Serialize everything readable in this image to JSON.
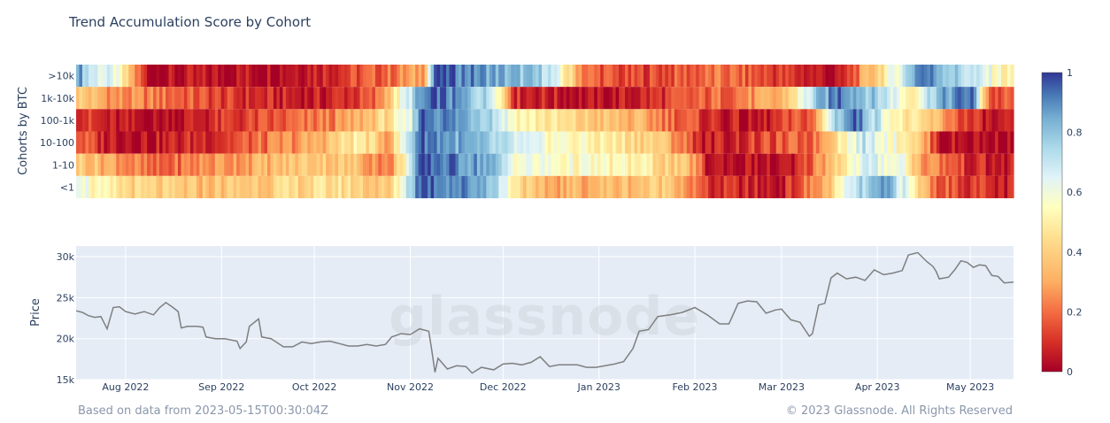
{
  "chart_data": [
    {
      "type": "heatmap",
      "title": "Trend Accumulation Score by Cohort",
      "ylabel": "Cohorts by BTC",
      "rows": [
        ">10k",
        "1k-10k",
        "100-1k",
        "10-100",
        "1-10",
        "<1"
      ],
      "x_range": [
        "2022-07-16",
        "2023-05-15"
      ],
      "colorscale": [
        {
          "stop": 0,
          "color": "#a50026"
        },
        {
          "stop": 0.1,
          "color": "#d73027"
        },
        {
          "stop": 0.2,
          "color": "#f46d43"
        },
        {
          "stop": 0.3,
          "color": "#fdae61"
        },
        {
          "stop": 0.45,
          "color": "#fee090"
        },
        {
          "stop": 0.55,
          "color": "#ffffbf"
        },
        {
          "stop": 0.65,
          "color": "#e0f3f8"
        },
        {
          "stop": 0.75,
          "color": "#abd9e9"
        },
        {
          "stop": 0.85,
          "color": "#74add1"
        },
        {
          "stop": 0.93,
          "color": "#4575b4"
        },
        {
          "stop": 1,
          "color": "#313695"
        }
      ],
      "colorbar_ticks": [
        "0",
        "0.2",
        "0.4",
        "0.6",
        "0.8",
        "1"
      ],
      "colorbar_range": [
        0,
        1
      ],
      "segments": {
        ">10k": [
          [
            "2022-07-16",
            0.9
          ],
          [
            "2022-07-20",
            0.7
          ],
          [
            "2022-07-28",
            0.6
          ],
          [
            "2022-08-08",
            0.02
          ],
          [
            "2022-09-20",
            0.06
          ],
          [
            "2022-10-10",
            0.12
          ],
          [
            "2022-10-25",
            0.2
          ],
          [
            "2022-11-05",
            0.3
          ],
          [
            "2022-11-09",
            0.98
          ],
          [
            "2022-11-28",
            0.85
          ],
          [
            "2022-12-15",
            0.75
          ],
          [
            "2022-12-28",
            0.2
          ],
          [
            "2023-01-10",
            0.12
          ],
          [
            "2023-02-10",
            0.2
          ],
          [
            "2023-03-01",
            0.12
          ],
          [
            "2023-03-20",
            0.02
          ],
          [
            "2023-04-10",
            0.7
          ],
          [
            "2023-04-15",
            0.95
          ],
          [
            "2023-05-08",
            0.6
          ],
          [
            "2023-05-13",
            0.5
          ]
        ],
        "1k-10k": [
          [
            "2022-07-16",
            0.4
          ],
          [
            "2022-07-28",
            0.25
          ],
          [
            "2022-08-15",
            0.2
          ],
          [
            "2022-09-05",
            0.1
          ],
          [
            "2022-10-01",
            0.05
          ],
          [
            "2022-10-20",
            0.15
          ],
          [
            "2022-11-04",
            0.85
          ],
          [
            "2022-11-10",
            0.95
          ],
          [
            "2022-11-28",
            0.7
          ],
          [
            "2022-12-05",
            0.1
          ],
          [
            "2023-01-01",
            0.02
          ],
          [
            "2023-01-20",
            0.1
          ],
          [
            "2023-02-10",
            0.2
          ],
          [
            "2023-03-01",
            0.3
          ],
          [
            "2023-03-12",
            0.75
          ],
          [
            "2023-03-20",
            0.95
          ],
          [
            "2023-04-05",
            0.7
          ],
          [
            "2023-04-12",
            0.5
          ],
          [
            "2023-04-20",
            0.8
          ],
          [
            "2023-05-02",
            0.95
          ],
          [
            "2023-05-08",
            0.15
          ]
        ],
        "100-1k": [
          [
            "2022-07-16",
            0.15
          ],
          [
            "2022-07-25",
            0.05
          ],
          [
            "2022-08-10",
            0.02
          ],
          [
            "2022-09-01",
            0.1
          ],
          [
            "2022-09-20",
            0.15
          ],
          [
            "2022-10-10",
            0.25
          ],
          [
            "2022-10-25",
            0.45
          ],
          [
            "2022-11-01",
            0.6
          ],
          [
            "2022-11-04",
            0.97
          ],
          [
            "2022-11-26",
            0.8
          ],
          [
            "2022-12-05",
            0.55
          ],
          [
            "2022-12-25",
            0.4
          ],
          [
            "2023-01-15",
            0.3
          ],
          [
            "2023-02-05",
            0.1
          ],
          [
            "2023-02-20",
            0.02
          ],
          [
            "2023-03-12",
            0.2
          ],
          [
            "2023-03-18",
            0.75
          ],
          [
            "2023-03-25",
            0.95
          ],
          [
            "2023-04-08",
            0.5
          ],
          [
            "2023-04-20",
            0.35
          ],
          [
            "2023-05-01",
            0.1
          ],
          [
            "2023-05-10",
            0.02
          ]
        ],
        "10-100": [
          [
            "2022-07-16",
            0.2
          ],
          [
            "2022-07-24",
            0.08
          ],
          [
            "2022-08-10",
            0.05
          ],
          [
            "2022-09-01",
            0.12
          ],
          [
            "2022-09-15",
            0.2
          ],
          [
            "2022-10-01",
            0.3
          ],
          [
            "2022-10-15",
            0.5
          ],
          [
            "2022-10-25",
            0.3
          ],
          [
            "2022-11-04",
            0.97
          ],
          [
            "2022-11-26",
            0.75
          ],
          [
            "2022-12-10",
            0.6
          ],
          [
            "2023-01-01",
            0.5
          ],
          [
            "2023-01-20",
            0.4
          ],
          [
            "2023-02-05",
            0.05
          ],
          [
            "2023-03-12",
            0.2
          ],
          [
            "2023-03-20",
            0.5
          ],
          [
            "2023-03-28",
            0.7
          ],
          [
            "2023-04-12",
            0.5
          ],
          [
            "2023-04-22",
            0.05
          ],
          [
            "2023-05-15",
            0.02
          ]
        ],
        "1-10": [
          [
            "2022-07-16",
            0.4
          ],
          [
            "2022-07-28",
            0.3
          ],
          [
            "2022-08-10",
            0.15
          ],
          [
            "2022-08-25",
            0.25
          ],
          [
            "2022-09-10",
            0.3
          ],
          [
            "2022-10-01",
            0.4
          ],
          [
            "2022-10-15",
            0.35
          ],
          [
            "2022-10-25",
            0.2
          ],
          [
            "2022-11-05",
            0.97
          ],
          [
            "2022-11-26",
            0.85
          ],
          [
            "2022-12-05",
            0.6
          ],
          [
            "2022-12-25",
            0.55
          ],
          [
            "2023-01-15",
            0.5
          ],
          [
            "2023-02-01",
            0.3
          ],
          [
            "2023-02-05",
            0.05
          ],
          [
            "2023-03-05",
            0.02
          ],
          [
            "2023-03-20",
            0.45
          ],
          [
            "2023-03-28",
            0.65
          ],
          [
            "2023-04-10",
            0.6
          ],
          [
            "2023-04-15",
            0.3
          ],
          [
            "2023-05-01",
            0.1
          ],
          [
            "2023-05-10",
            0.05
          ]
        ],
        "<1": [
          [
            "2022-07-16",
            0.7
          ],
          [
            "2022-07-22",
            0.5
          ],
          [
            "2022-08-05",
            0.4
          ],
          [
            "2022-08-25",
            0.35
          ],
          [
            "2022-09-15",
            0.4
          ],
          [
            "2022-10-10",
            0.45
          ],
          [
            "2022-10-25",
            0.35
          ],
          [
            "2022-11-04",
            0.97
          ],
          [
            "2022-11-26",
            0.85
          ],
          [
            "2022-12-05",
            0.5
          ],
          [
            "2022-12-12",
            0.3
          ],
          [
            "2023-01-10",
            0.35
          ],
          [
            "2023-01-25",
            0.4
          ],
          [
            "2023-02-05",
            0.1
          ],
          [
            "2023-03-01",
            0.05
          ],
          [
            "2023-03-15",
            0.3
          ],
          [
            "2023-03-25",
            0.7
          ],
          [
            "2023-04-05",
            0.85
          ],
          [
            "2023-04-12",
            0.55
          ],
          [
            "2023-04-20",
            0.2
          ],
          [
            "2023-05-05",
            0.1
          ],
          [
            "2023-05-12",
            0.05
          ]
        ]
      }
    },
    {
      "type": "line",
      "ylabel": "Price",
      "x_range": [
        "2022-07-16",
        "2023-05-15"
      ],
      "x_ticks": [
        {
          "date": "2022-08-01",
          "label": "Aug 2022"
        },
        {
          "date": "2022-09-01",
          "label": "Sep 2022"
        },
        {
          "date": "2022-10-01",
          "label": "Oct 2022"
        },
        {
          "date": "2022-11-01",
          "label": "Nov 2022"
        },
        {
          "date": "2022-12-01",
          "label": "Dec 2022"
        },
        {
          "date": "2023-01-01",
          "label": "Jan 2023"
        },
        {
          "date": "2023-02-01",
          "label": "Feb 2023"
        },
        {
          "date": "2023-03-01",
          "label": "Mar 2023"
        },
        {
          "date": "2023-04-01",
          "label": "Apr 2023"
        },
        {
          "date": "2023-05-01",
          "label": "May 2023"
        }
      ],
      "y_ticks": [
        {
          "value": 15000,
          "label": "15k"
        },
        {
          "value": 20000,
          "label": "20k"
        },
        {
          "value": 25000,
          "label": "25k"
        },
        {
          "value": 30000,
          "label": "30k"
        }
      ],
      "ylim": [
        15000,
        31300
      ],
      "grid": true,
      "line_color": "#7f7f7f",
      "points": [
        [
          "2022-07-16",
          23400
        ],
        [
          "2022-07-18",
          23200
        ],
        [
          "2022-07-20",
          22800
        ],
        [
          "2022-07-22",
          22600
        ],
        [
          "2022-07-24",
          22700
        ],
        [
          "2022-07-26",
          21200
        ],
        [
          "2022-07-28",
          23800
        ],
        [
          "2022-07-30",
          23900
        ],
        [
          "2022-08-01",
          23300
        ],
        [
          "2022-08-04",
          23000
        ],
        [
          "2022-08-07",
          23300
        ],
        [
          "2022-08-10",
          22900
        ],
        [
          "2022-08-12",
          23800
        ],
        [
          "2022-08-14",
          24400
        ],
        [
          "2022-08-16",
          23900
        ],
        [
          "2022-08-18",
          23300
        ],
        [
          "2022-08-19",
          21300
        ],
        [
          "2022-08-21",
          21500
        ],
        [
          "2022-08-24",
          21500
        ],
        [
          "2022-08-26",
          21400
        ],
        [
          "2022-08-27",
          20200
        ],
        [
          "2022-08-30",
          20000
        ],
        [
          "2022-09-02",
          20000
        ],
        [
          "2022-09-06",
          19700
        ],
        [
          "2022-09-07",
          18800
        ],
        [
          "2022-09-09",
          19600
        ],
        [
          "2022-09-10",
          21500
        ],
        [
          "2022-09-13",
          22400
        ],
        [
          "2022-09-14",
          20200
        ],
        [
          "2022-09-17",
          20000
        ],
        [
          "2022-09-19",
          19500
        ],
        [
          "2022-09-21",
          19000
        ],
        [
          "2022-09-24",
          19000
        ],
        [
          "2022-09-27",
          19600
        ],
        [
          "2022-09-30",
          19400
        ],
        [
          "2022-10-03",
          19600
        ],
        [
          "2022-10-06",
          19700
        ],
        [
          "2022-10-09",
          19400
        ],
        [
          "2022-10-12",
          19100
        ],
        [
          "2022-10-15",
          19100
        ],
        [
          "2022-10-18",
          19300
        ],
        [
          "2022-10-21",
          19100
        ],
        [
          "2022-10-24",
          19300
        ],
        [
          "2022-10-26",
          20200
        ],
        [
          "2022-10-29",
          20600
        ],
        [
          "2022-11-01",
          20500
        ],
        [
          "2022-11-04",
          21200
        ],
        [
          "2022-11-07",
          20900
        ],
        [
          "2022-11-08",
          18500
        ],
        [
          "2022-11-09",
          15900
        ],
        [
          "2022-11-10",
          17600
        ],
        [
          "2022-11-13",
          16300
        ],
        [
          "2022-11-16",
          16700
        ],
        [
          "2022-11-19",
          16600
        ],
        [
          "2022-11-21",
          15800
        ],
        [
          "2022-11-24",
          16500
        ],
        [
          "2022-11-28",
          16200
        ],
        [
          "2022-12-01",
          16900
        ],
        [
          "2022-12-04",
          17000
        ],
        [
          "2022-12-07",
          16800
        ],
        [
          "2022-12-10",
          17100
        ],
        [
          "2022-12-13",
          17800
        ],
        [
          "2022-12-16",
          16600
        ],
        [
          "2022-12-19",
          16800
        ],
        [
          "2022-12-22",
          16800
        ],
        [
          "2022-12-25",
          16800
        ],
        [
          "2022-12-28",
          16500
        ],
        [
          "2022-12-31",
          16500
        ],
        [
          "2023-01-03",
          16700
        ],
        [
          "2023-01-06",
          16900
        ],
        [
          "2023-01-09",
          17200
        ],
        [
          "2023-01-12",
          18800
        ],
        [
          "2023-01-14",
          20900
        ],
        [
          "2023-01-17",
          21100
        ],
        [
          "2023-01-20",
          22700
        ],
        [
          "2023-01-24",
          22900
        ],
        [
          "2023-01-28",
          23200
        ],
        [
          "2023-02-01",
          23800
        ],
        [
          "2023-02-05",
          22900
        ],
        [
          "2023-02-09",
          21800
        ],
        [
          "2023-02-12",
          21800
        ],
        [
          "2023-02-15",
          24300
        ],
        [
          "2023-02-18",
          24600
        ],
        [
          "2023-02-21",
          24500
        ],
        [
          "2023-02-24",
          23100
        ],
        [
          "2023-02-27",
          23500
        ],
        [
          "2023-03-01",
          23600
        ],
        [
          "2023-03-04",
          22300
        ],
        [
          "2023-03-07",
          22000
        ],
        [
          "2023-03-10",
          20300
        ],
        [
          "2023-03-11",
          20600
        ],
        [
          "2023-03-13",
          24100
        ],
        [
          "2023-03-15",
          24300
        ],
        [
          "2023-03-17",
          27400
        ],
        [
          "2023-03-19",
          28000
        ],
        [
          "2023-03-22",
          27300
        ],
        [
          "2023-03-25",
          27500
        ],
        [
          "2023-03-28",
          27100
        ],
        [
          "2023-03-31",
          28400
        ],
        [
          "2023-04-03",
          27800
        ],
        [
          "2023-04-06",
          28000
        ],
        [
          "2023-04-09",
          28300
        ],
        [
          "2023-04-11",
          30200
        ],
        [
          "2023-04-14",
          30500
        ],
        [
          "2023-04-17",
          29400
        ],
        [
          "2023-04-19",
          28800
        ],
        [
          "2023-04-20",
          28200
        ],
        [
          "2023-04-21",
          27300
        ],
        [
          "2023-04-24",
          27500
        ],
        [
          "2023-04-26",
          28400
        ],
        [
          "2023-04-28",
          29500
        ],
        [
          "2023-04-30",
          29300
        ],
        [
          "2023-05-02",
          28700
        ],
        [
          "2023-05-04",
          29000
        ],
        [
          "2023-05-06",
          28900
        ],
        [
          "2023-05-08",
          27700
        ],
        [
          "2023-05-10",
          27600
        ],
        [
          "2023-05-12",
          26800
        ],
        [
          "2023-05-15",
          26900
        ]
      ]
    }
  ],
  "watermark": "glassnode",
  "footer": {
    "left": "Based on data from 2023-05-15T00:30:04Z",
    "right": "© 2023 Glassnode. All Rights Reserved"
  }
}
